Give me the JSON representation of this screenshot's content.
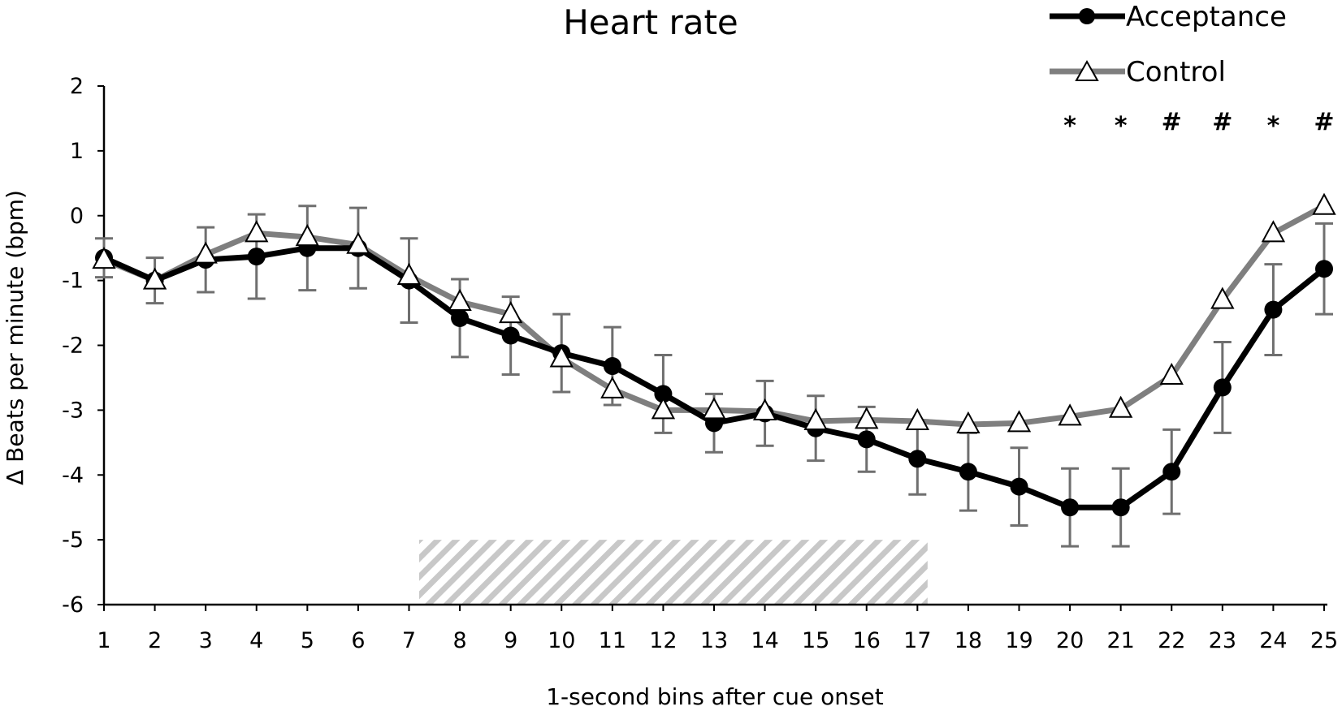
{
  "chart_data": {
    "type": "line",
    "title": "Heart rate",
    "xlabel": "1-second bins after cue onset",
    "ylabel": "Δ Beats per minute (bpm)",
    "x": [
      1,
      2,
      3,
      4,
      5,
      6,
      7,
      8,
      9,
      10,
      11,
      12,
      13,
      14,
      15,
      16,
      17,
      18,
      19,
      20,
      21,
      22,
      23,
      24,
      25
    ],
    "xlim": [
      1,
      25
    ],
    "ylim": [
      -6,
      2
    ],
    "yticks": [
      2,
      1,
      0,
      -1,
      -2,
      -3,
      -4,
      -5,
      -6
    ],
    "series": [
      {
        "name": "Acceptance",
        "color": "#000000",
        "marker": "filled-circle",
        "values": [
          -0.65,
          -1.0,
          -0.68,
          -0.63,
          -0.5,
          -0.5,
          -1.0,
          -1.58,
          -1.85,
          -2.12,
          -2.32,
          -2.75,
          -3.2,
          -3.05,
          -3.28,
          -3.45,
          -3.75,
          -3.95,
          -4.18,
          -4.5,
          -4.5,
          -3.95,
          -2.65,
          -1.45,
          -0.82
        ],
        "errors": [
          0.3,
          0.35,
          0.5,
          0.65,
          0.65,
          0.62,
          0.65,
          0.6,
          0.6,
          0.6,
          0.6,
          0.6,
          0.45,
          0.5,
          0.5,
          0.5,
          0.55,
          0.6,
          0.6,
          0.6,
          0.6,
          0.65,
          0.7,
          0.7,
          0.7
        ]
      },
      {
        "name": "Control",
        "color": "#7f7f7f",
        "marker": "open-triangle",
        "values": [
          -0.68,
          -1.0,
          -0.6,
          -0.27,
          -0.33,
          -0.45,
          -0.93,
          -1.33,
          -1.52,
          -2.2,
          -2.68,
          -3.0,
          -3.0,
          -3.02,
          -3.17,
          -3.15,
          -3.17,
          -3.22,
          -3.2,
          -3.1,
          -2.98,
          -2.47,
          -1.3,
          -0.27,
          0.15
        ]
      }
    ],
    "significance": [
      {
        "x": 20,
        "mark": "*"
      },
      {
        "x": 21,
        "mark": "*"
      },
      {
        "x": 22,
        "mark": "#"
      },
      {
        "x": 23,
        "mark": "#"
      },
      {
        "x": 24,
        "mark": "*"
      },
      {
        "x": 25,
        "mark": "#"
      }
    ],
    "shaded_region": {
      "x_start": 7.2,
      "x_end": 17.2,
      "y_start": -6,
      "y_end": -5,
      "pattern": "diagonal-hatch"
    },
    "legend": {
      "position": "top-right"
    }
  }
}
